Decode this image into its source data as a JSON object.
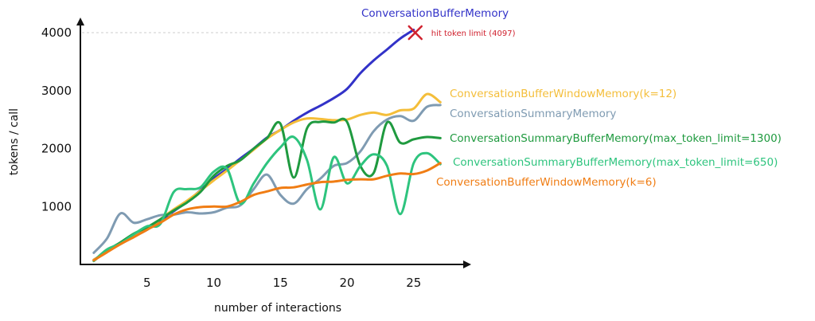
{
  "chart_data": {
    "type": "line",
    "xlabel": "number of interactions",
    "ylabel": "tokens / call",
    "xlim": [
      0,
      28
    ],
    "ylim": [
      0,
      4300
    ],
    "xticks": [
      5,
      10,
      15,
      20,
      25
    ],
    "yticks": [
      1000,
      2000,
      3000,
      4000
    ],
    "grid": false,
    "legend": "inline labels at right end of each line",
    "series": [
      {
        "name": "ConversationBufferMemory",
        "color": "#3232c8",
        "x": [
          1,
          2,
          3,
          4,
          5,
          6,
          7,
          8,
          9,
          10,
          11,
          12,
          13,
          14,
          15,
          16,
          17,
          18,
          19,
          20,
          21,
          22,
          23,
          24,
          25
        ],
        "y": [
          80,
          220,
          350,
          480,
          600,
          760,
          920,
          1080,
          1280,
          1480,
          1650,
          1830,
          2000,
          2190,
          2320,
          2480,
          2620,
          2740,
          2870,
          3030,
          3300,
          3520,
          3710,
          3900,
          4050
        ]
      },
      {
        "name": "ConversationBufferWindowMemory(k=12)",
        "color": "#f4be3a",
        "x": [
          1,
          2,
          3,
          4,
          5,
          6,
          7,
          8,
          9,
          10,
          11,
          12,
          13,
          14,
          15,
          16,
          17,
          18,
          19,
          20,
          21,
          22,
          23,
          24,
          25,
          26,
          27
        ],
        "y": [
          80,
          220,
          350,
          480,
          600,
          780,
          950,
          1100,
          1270,
          1450,
          1620,
          1800,
          1980,
          2170,
          2320,
          2450,
          2520,
          2510,
          2490,
          2500,
          2580,
          2620,
          2580,
          2660,
          2690,
          2940,
          2800
        ]
      },
      {
        "name": "ConversationSummaryMemory",
        "color": "#7f9bb2",
        "x": [
          1,
          2,
          3,
          4,
          5,
          6,
          7,
          8,
          9,
          10,
          11,
          12,
          13,
          14,
          15,
          16,
          17,
          18,
          19,
          20,
          21,
          22,
          23,
          24,
          25,
          26,
          27
        ],
        "y": [
          200,
          450,
          880,
          720,
          780,
          850,
          860,
          900,
          880,
          900,
          980,
          1020,
          1300,
          1550,
          1200,
          1050,
          1300,
          1480,
          1700,
          1750,
          1950,
          2300,
          2500,
          2560,
          2480,
          2720,
          2750
        ]
      },
      {
        "name": "ConversationSummaryBufferMemory(max_token_limit=1300)",
        "color": "#1f9a3f",
        "x": [
          1,
          2,
          3,
          4,
          5,
          6,
          7,
          8,
          9,
          10,
          11,
          12,
          13,
          14,
          15,
          16,
          17,
          18,
          19,
          20,
          21,
          22,
          23,
          24,
          25,
          26,
          27
        ],
        "y": [
          60,
          240,
          380,
          530,
          640,
          780,
          930,
          1070,
          1250,
          1530,
          1700,
          1800,
          2000,
          2180,
          2430,
          1500,
          2350,
          2460,
          2450,
          2460,
          1700,
          1580,
          2450,
          2100,
          2160,
          2200,
          2180
        ]
      },
      {
        "name": "ConversationSummaryBufferMemory(max_token_limit=650)",
        "color": "#2ec47e",
        "x": [
          1,
          2,
          3,
          4,
          5,
          6,
          7,
          8,
          9,
          10,
          11,
          12,
          13,
          14,
          15,
          16,
          17,
          18,
          19,
          20,
          21,
          22,
          23,
          24,
          25,
          26,
          27
        ],
        "y": [
          60,
          260,
          360,
          520,
          660,
          700,
          1250,
          1300,
          1330,
          1600,
          1650,
          1050,
          1400,
          1750,
          2020,
          2200,
          1800,
          950,
          1850,
          1400,
          1700,
          1900,
          1700,
          870,
          1750,
          1920,
          1730
        ]
      },
      {
        "name": "ConversationBufferWindowMemory(k=6)",
        "color": "#f07d14",
        "x": [
          1,
          2,
          3,
          4,
          5,
          6,
          7,
          8,
          9,
          10,
          11,
          12,
          13,
          14,
          15,
          16,
          17,
          18,
          19,
          20,
          21,
          22,
          23,
          24,
          25,
          26,
          27
        ],
        "y": [
          70,
          210,
          350,
          470,
          600,
          720,
          860,
          950,
          990,
          1000,
          1000,
          1080,
          1200,
          1260,
          1320,
          1330,
          1380,
          1420,
          1430,
          1460,
          1470,
          1470,
          1530,
          1570,
          1560,
          1620,
          1750
        ]
      }
    ],
    "annotations": [
      {
        "text": "hit token limit (4097)",
        "x": 25,
        "y": 4000,
        "marker": "x",
        "color": "#d0222f"
      }
    ],
    "reference_lines": [
      {
        "orientation": "horizontal",
        "y": 4000,
        "style": "dashed",
        "color": "#cccccc"
      }
    ]
  }
}
